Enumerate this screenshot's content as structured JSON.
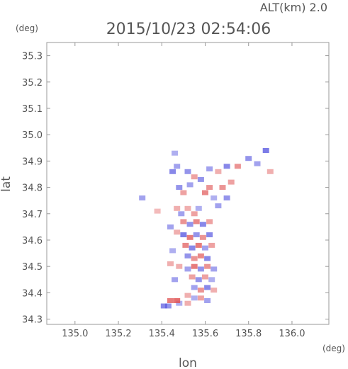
{
  "header": {
    "altitude_label": "ALT(km) 2.0",
    "timestamp": "2015/10/23 02:54:06",
    "y_unit": "(deg)",
    "x_unit": "(deg)"
  },
  "chart_data": {
    "type": "heatmap",
    "title": "2015/10/23 02:54:06",
    "xlabel": "lon",
    "ylabel": "lat",
    "xlim": [
      134.87,
      136.17
    ],
    "ylim": [
      34.28,
      35.35
    ],
    "x_ticks": [
      "135.0",
      "135.2",
      "135.4",
      "135.6",
      "135.8",
      "136.0"
    ],
    "y_ticks": [
      "34.3",
      "34.4",
      "34.5",
      "34.6",
      "34.7",
      "34.8",
      "34.9",
      "35.0",
      "35.1",
      "35.2",
      "35.3"
    ],
    "grid": false,
    "colors": {
      "positive": "#e05555",
      "negative": "#5555e0",
      "frame": "#999999",
      "text": "#555555"
    },
    "cells": [
      {
        "lon": 135.45,
        "lat": 34.86,
        "v": -0.6
      },
      {
        "lon": 135.47,
        "lat": 34.88,
        "v": -0.4
      },
      {
        "lon": 135.46,
        "lat": 34.93,
        "v": -0.3
      },
      {
        "lon": 135.52,
        "lat": 34.86,
        "v": -0.5
      },
      {
        "lon": 135.55,
        "lat": 34.84,
        "v": 0.4
      },
      {
        "lon": 135.58,
        "lat": 34.83,
        "v": -0.5
      },
      {
        "lon": 135.62,
        "lat": 34.87,
        "v": -0.4
      },
      {
        "lon": 135.66,
        "lat": 34.86,
        "v": 0.3
      },
      {
        "lon": 135.7,
        "lat": 34.88,
        "v": -0.6
      },
      {
        "lon": 135.75,
        "lat": 34.88,
        "v": 0.5
      },
      {
        "lon": 135.8,
        "lat": 34.91,
        "v": -0.5
      },
      {
        "lon": 135.84,
        "lat": 34.89,
        "v": -0.4
      },
      {
        "lon": 135.88,
        "lat": 34.94,
        "v": -0.7
      },
      {
        "lon": 135.9,
        "lat": 34.86,
        "v": 0.3
      },
      {
        "lon": 135.48,
        "lat": 34.8,
        "v": -0.5
      },
      {
        "lon": 135.5,
        "lat": 34.78,
        "v": 0.4
      },
      {
        "lon": 135.53,
        "lat": 34.81,
        "v": -0.4
      },
      {
        "lon": 135.6,
        "lat": 34.78,
        "v": 0.6
      },
      {
        "lon": 135.62,
        "lat": 34.8,
        "v": 0.5
      },
      {
        "lon": 135.64,
        "lat": 34.76,
        "v": -0.3
      },
      {
        "lon": 135.68,
        "lat": 34.8,
        "v": 0.5
      },
      {
        "lon": 135.7,
        "lat": 34.76,
        "v": -0.5
      },
      {
        "lon": 135.72,
        "lat": 34.82,
        "v": 0.4
      },
      {
        "lon": 135.66,
        "lat": 34.73,
        "v": -0.4
      },
      {
        "lon": 135.31,
        "lat": 34.76,
        "v": -0.4
      },
      {
        "lon": 135.38,
        "lat": 34.71,
        "v": 0.2
      },
      {
        "lon": 135.47,
        "lat": 34.72,
        "v": 0.3
      },
      {
        "lon": 135.49,
        "lat": 34.7,
        "v": -0.4
      },
      {
        "lon": 135.52,
        "lat": 34.72,
        "v": 0.3
      },
      {
        "lon": 135.55,
        "lat": 34.7,
        "v": 0.4
      },
      {
        "lon": 135.57,
        "lat": 34.72,
        "v": -0.3
      },
      {
        "lon": 135.5,
        "lat": 34.67,
        "v": 0.5
      },
      {
        "lon": 135.53,
        "lat": 34.66,
        "v": -0.5
      },
      {
        "lon": 135.56,
        "lat": 34.67,
        "v": 0.6
      },
      {
        "lon": 135.59,
        "lat": 34.66,
        "v": -0.6
      },
      {
        "lon": 135.62,
        "lat": 34.67,
        "v": 0.4
      },
      {
        "lon": 135.44,
        "lat": 34.65,
        "v": -0.4
      },
      {
        "lon": 135.47,
        "lat": 34.63,
        "v": 0.3
      },
      {
        "lon": 135.5,
        "lat": 34.62,
        "v": -0.7
      },
      {
        "lon": 135.53,
        "lat": 34.61,
        "v": 0.7
      },
      {
        "lon": 135.56,
        "lat": 34.62,
        "v": -0.5
      },
      {
        "lon": 135.59,
        "lat": 34.61,
        "v": 0.5
      },
      {
        "lon": 135.62,
        "lat": 34.62,
        "v": -0.6
      },
      {
        "lon": 135.51,
        "lat": 34.58,
        "v": 0.6
      },
      {
        "lon": 135.54,
        "lat": 34.57,
        "v": -0.6
      },
      {
        "lon": 135.57,
        "lat": 34.58,
        "v": 0.7
      },
      {
        "lon": 135.6,
        "lat": 34.57,
        "v": -0.4
      },
      {
        "lon": 135.63,
        "lat": 34.58,
        "v": 0.4
      },
      {
        "lon": 135.52,
        "lat": 34.54,
        "v": -0.5
      },
      {
        "lon": 135.55,
        "lat": 34.53,
        "v": 0.5
      },
      {
        "lon": 135.58,
        "lat": 34.54,
        "v": 0.6
      },
      {
        "lon": 135.61,
        "lat": 34.53,
        "v": -0.6
      },
      {
        "lon": 135.48,
        "lat": 34.5,
        "v": 0.3
      },
      {
        "lon": 135.52,
        "lat": 34.49,
        "v": -0.4
      },
      {
        "lon": 135.55,
        "lat": 34.5,
        "v": 0.7
      },
      {
        "lon": 135.58,
        "lat": 34.49,
        "v": -0.5
      },
      {
        "lon": 135.61,
        "lat": 34.5,
        "v": 0.5
      },
      {
        "lon": 135.64,
        "lat": 34.49,
        "v": -0.4
      },
      {
        "lon": 135.54,
        "lat": 34.46,
        "v": 0.4
      },
      {
        "lon": 135.57,
        "lat": 34.45,
        "v": -0.5
      },
      {
        "lon": 135.6,
        "lat": 34.46,
        "v": 0.4
      },
      {
        "lon": 135.63,
        "lat": 34.45,
        "v": -0.3
      },
      {
        "lon": 135.55,
        "lat": 34.42,
        "v": -0.4
      },
      {
        "lon": 135.58,
        "lat": 34.41,
        "v": 0.5
      },
      {
        "lon": 135.61,
        "lat": 34.42,
        "v": -0.6
      },
      {
        "lon": 135.64,
        "lat": 34.41,
        "v": 0.3
      },
      {
        "lon": 135.52,
        "lat": 34.39,
        "v": 0.3
      },
      {
        "lon": 135.55,
        "lat": 34.38,
        "v": -0.3
      },
      {
        "lon": 135.58,
        "lat": 34.38,
        "v": 0.4
      },
      {
        "lon": 135.61,
        "lat": 34.37,
        "v": -0.4
      },
      {
        "lon": 135.48,
        "lat": 34.36,
        "v": -0.3
      },
      {
        "lon": 135.52,
        "lat": 34.36,
        "v": 0.3
      },
      {
        "lon": 135.44,
        "lat": 34.37,
        "v": 0.7
      },
      {
        "lon": 135.47,
        "lat": 34.37,
        "v": 0.8
      },
      {
        "lon": 135.43,
        "lat": 34.35,
        "v": -0.5
      },
      {
        "lon": 135.41,
        "lat": 34.35,
        "v": -0.6
      },
      {
        "lon": 135.46,
        "lat": 34.45,
        "v": -0.4
      },
      {
        "lon": 135.44,
        "lat": 34.51,
        "v": 0.3
      },
      {
        "lon": 135.45,
        "lat": 34.56,
        "v": -0.3
      }
    ]
  }
}
